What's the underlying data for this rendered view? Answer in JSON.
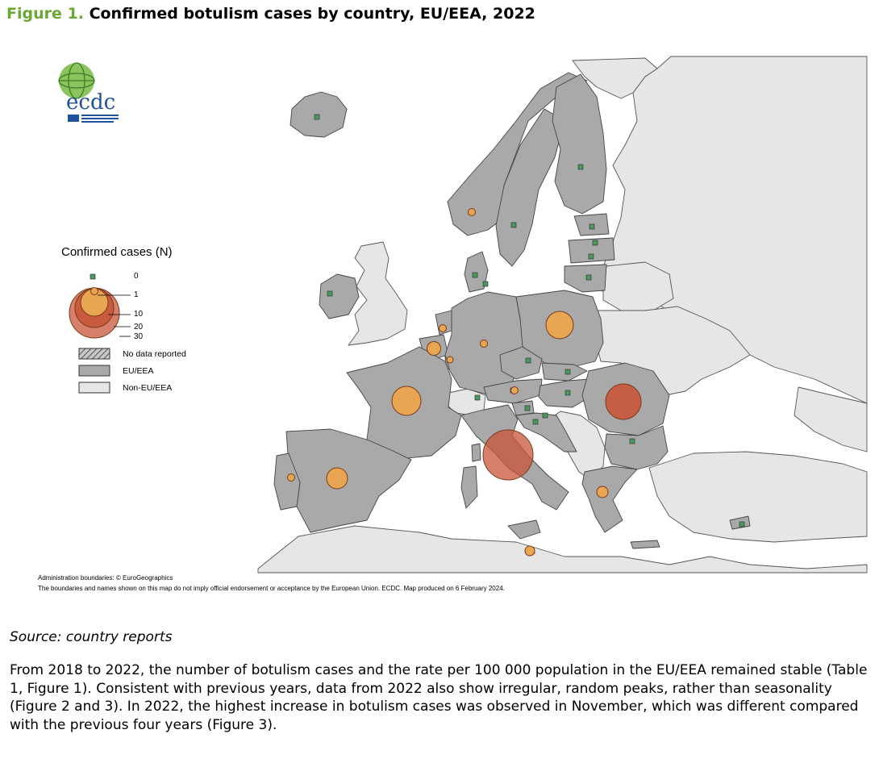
{
  "figure": {
    "label": "Figure 1.",
    "title": "Confirmed botulism cases by country, EU/EEA, 2022"
  },
  "logo": {
    "name": "ecdc"
  },
  "legend": {
    "title": "Confirmed cases (N)",
    "size_values": [
      "0",
      "1",
      "10",
      "20",
      "30"
    ],
    "keys": [
      {
        "label": "No data reported",
        "pattern": "hatched"
      },
      {
        "label": "EU/EEA",
        "color": "#a9a9a9"
      },
      {
        "label": "Non-EU/EEA",
        "color": "#e6e6e6"
      }
    ]
  },
  "colors": {
    "sea": "#ffffff",
    "eu_eea": "#a9a9a9",
    "non_eu_eea": "#e6e6e6",
    "zero_marker": "#4a9a5a",
    "title_accent": "#6aa832",
    "bubble_small": "#e8a652",
    "bubble_large": "#c8553a"
  },
  "notes": {
    "admin_boundaries": "Administration boundaries: © EuroGeographics",
    "disclaimer": "The boundaries and names shown on this map do not imply official endorsement or acceptance by the European Union. ECDC. Map produced on 6 February 2024."
  },
  "source": "Source: country reports",
  "paragraph": "From 2018 to 2022, the number of botulism cases and the rate per 100 000 population in the EU/EEA remained stable (Table 1, Figure 1). Consistent with previous years, data from 2022 also show irregular, random peaks, rather than seasonality (Figure 2 and 3). In 2022, the highest increase in botulism cases was observed in November, which was different compared with the previous four years (Figure 3)."
}
